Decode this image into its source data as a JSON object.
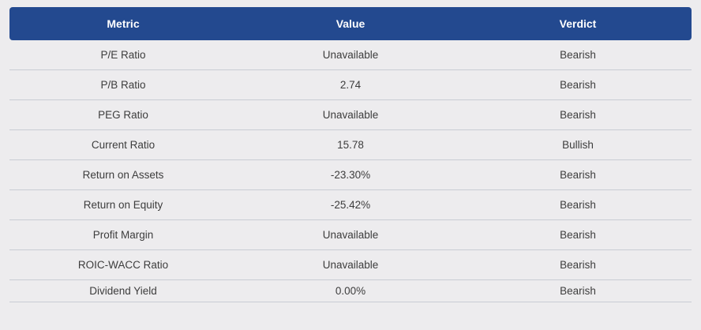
{
  "table": {
    "headers": {
      "metric": "Metric",
      "value": "Value",
      "verdict": "Verdict"
    },
    "rows": [
      {
        "metric": "P/E Ratio",
        "value": "Unavailable",
        "verdict": "Bearish"
      },
      {
        "metric": "P/B Ratio",
        "value": "2.74",
        "verdict": "Bearish"
      },
      {
        "metric": "PEG Ratio",
        "value": "Unavailable",
        "verdict": "Bearish"
      },
      {
        "metric": "Current Ratio",
        "value": "15.78",
        "verdict": "Bullish"
      },
      {
        "metric": "Return on Assets",
        "value": "-23.30%",
        "verdict": "Bearish"
      },
      {
        "metric": "Return on Equity",
        "value": "-25.42%",
        "verdict": "Bearish"
      },
      {
        "metric": "Profit Margin",
        "value": "Unavailable",
        "verdict": "Bearish"
      },
      {
        "metric": "ROIC-WACC Ratio",
        "value": "Unavailable",
        "verdict": "Bearish"
      },
      {
        "metric": "Dividend Yield",
        "value": "0.00%",
        "verdict": "Bearish"
      }
    ]
  },
  "colors": {
    "header_bg": "#23498f",
    "page_bg": "#edecee",
    "divider": "#c9ccd4"
  }
}
